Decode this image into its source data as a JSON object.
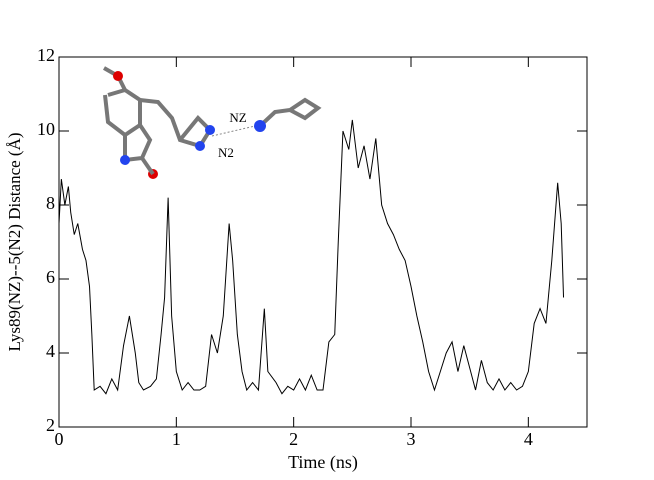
{
  "chart_data": {
    "type": "line",
    "x_label": "Time (ns)",
    "y_label": "Lys89(NZ)--5(N2) Distance (Å)",
    "annotations": [
      "NZ",
      "N2"
    ],
    "xlim": [
      0,
      4.5
    ],
    "ylim": [
      2,
      12
    ],
    "xticks": [
      0,
      1,
      2,
      3,
      4
    ],
    "yticks": [
      2,
      4,
      6,
      8,
      10,
      12
    ],
    "color": "#000000",
    "x": [
      0.0,
      0.02,
      0.05,
      0.08,
      0.1,
      0.13,
      0.16,
      0.2,
      0.23,
      0.26,
      0.28,
      0.3,
      0.35,
      0.4,
      0.45,
      0.5,
      0.55,
      0.6,
      0.65,
      0.68,
      0.72,
      0.78,
      0.83,
      0.87,
      0.9,
      0.93,
      0.96,
      1.0,
      1.05,
      1.1,
      1.15,
      1.2,
      1.25,
      1.3,
      1.35,
      1.4,
      1.45,
      1.48,
      1.52,
      1.56,
      1.6,
      1.65,
      1.7,
      1.75,
      1.78,
      1.85,
      1.9,
      1.95,
      2.0,
      2.05,
      2.1,
      2.15,
      2.2,
      2.25,
      2.3,
      2.35,
      2.38,
      2.42,
      2.47,
      2.5,
      2.55,
      2.6,
      2.65,
      2.7,
      2.75,
      2.8,
      2.85,
      2.9,
      2.95,
      3.0,
      3.05,
      3.1,
      3.15,
      3.2,
      3.25,
      3.3,
      3.35,
      3.4,
      3.45,
      3.5,
      3.55,
      3.6,
      3.65,
      3.7,
      3.75,
      3.8,
      3.85,
      3.9,
      3.95,
      4.0,
      4.05,
      4.1,
      4.15,
      4.2,
      4.25,
      4.28,
      4.3
    ],
    "values": [
      7.5,
      8.7,
      8.0,
      8.5,
      7.8,
      7.2,
      7.5,
      6.8,
      6.5,
      5.8,
      4.5,
      3.0,
      3.1,
      2.9,
      3.3,
      3.0,
      4.2,
      5.0,
      4.0,
      3.2,
      3.0,
      3.1,
      3.3,
      4.5,
      5.5,
      8.2,
      5.0,
      3.5,
      3.0,
      3.2,
      3.0,
      3.0,
      3.1,
      4.5,
      4.0,
      5.0,
      7.5,
      6.5,
      4.5,
      3.5,
      3.0,
      3.2,
      3.0,
      5.2,
      3.5,
      3.2,
      2.9,
      3.1,
      3.0,
      3.3,
      3.0,
      3.4,
      3.0,
      3.0,
      4.3,
      4.5,
      7.0,
      10.0,
      9.5,
      10.3,
      9.0,
      9.6,
      8.7,
      9.8,
      8.0,
      7.5,
      7.2,
      6.8,
      6.5,
      5.8,
      5.0,
      4.3,
      3.5,
      3.0,
      3.5,
      4.0,
      4.3,
      3.5,
      4.2,
      3.6,
      3.0,
      3.8,
      3.2,
      3.0,
      3.3,
      3.0,
      3.2,
      3.0,
      3.1,
      3.5,
      4.8,
      5.2,
      4.8,
      6.5,
      8.6,
      7.5,
      5.5
    ]
  }
}
